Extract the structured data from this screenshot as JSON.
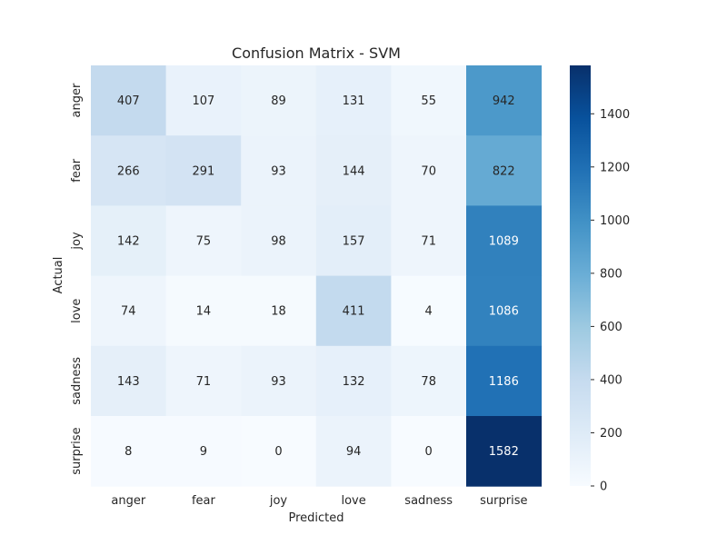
{
  "chart_data": {
    "type": "heatmap",
    "title": "Confusion Matrix - SVM",
    "xlabel": "Predicted",
    "ylabel": "Actual",
    "x_categories": [
      "anger",
      "fear",
      "joy",
      "love",
      "sadness",
      "surprise"
    ],
    "y_categories": [
      "anger",
      "fear",
      "joy",
      "love",
      "sadness",
      "surprise"
    ],
    "values": [
      [
        407,
        107,
        89,
        131,
        55,
        942
      ],
      [
        266,
        291,
        93,
        144,
        70,
        822
      ],
      [
        142,
        75,
        98,
        157,
        71,
        1089
      ],
      [
        74,
        14,
        18,
        411,
        4,
        1086
      ],
      [
        143,
        71,
        93,
        132,
        78,
        1186
      ],
      [
        8,
        9,
        0,
        94,
        0,
        1582
      ]
    ],
    "colormap": "Blues",
    "vmin": 0,
    "vmax": 1582,
    "colorbar_ticks": [
      "0",
      "200",
      "400",
      "600",
      "800",
      "1000",
      "1200",
      "1400"
    ],
    "annotated": true,
    "grid": false
  }
}
